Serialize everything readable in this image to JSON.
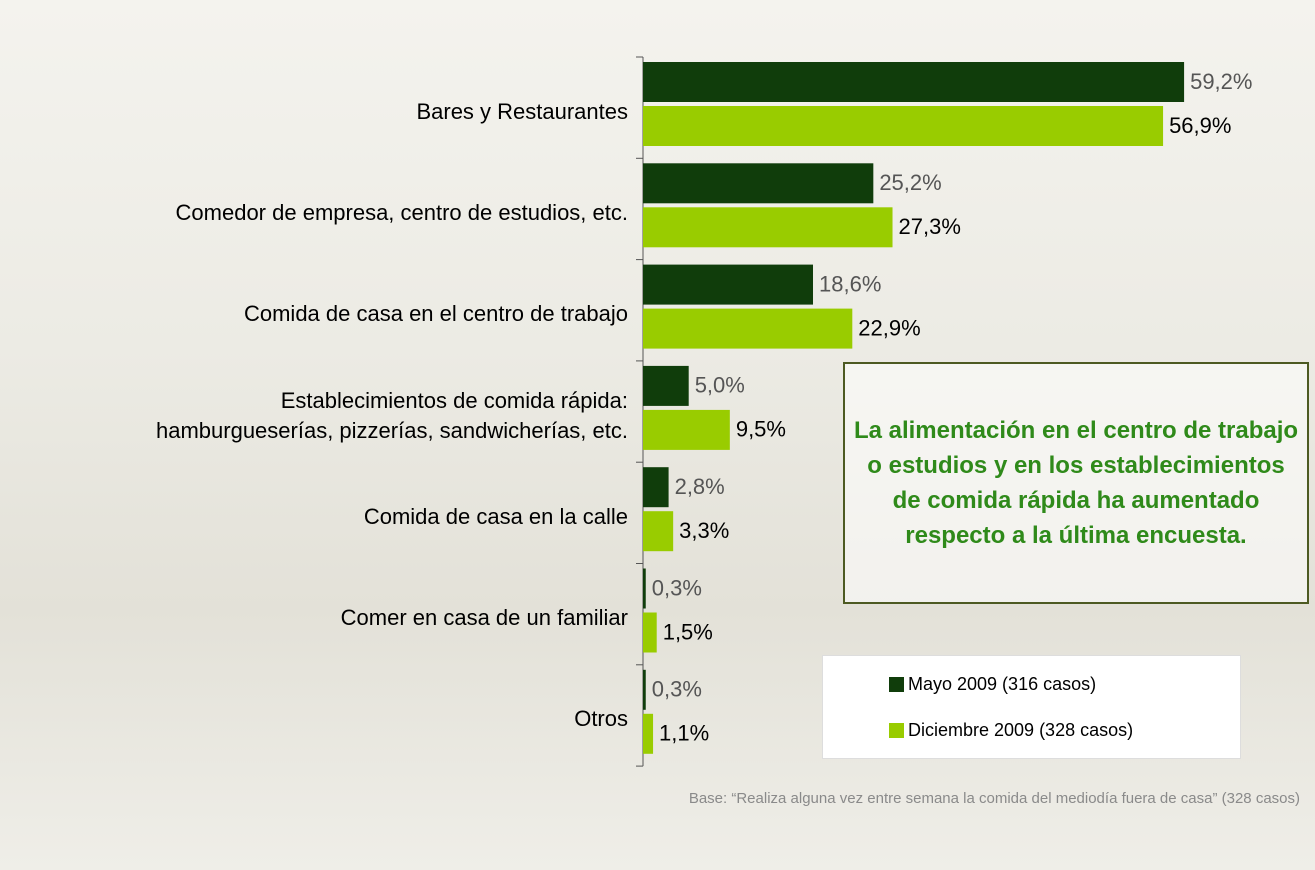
{
  "chart_data": {
    "type": "bar",
    "orientation": "horizontal",
    "categories": [
      "Bares y Restaurantes",
      "Comedor de empresa, centro de estudios, etc.",
      "Comida de casa en el centro de trabajo",
      "Establecimientos de comida rápida:\nhamburgueserías, pizzerías, sandwicherías, etc.",
      "Comida de casa en la calle",
      "Comer en casa de un familiar",
      "Otros"
    ],
    "series": [
      {
        "name": "Mayo 2009 (316 casos)",
        "color": "#103d0b",
        "values": [
          59.2,
          25.2,
          18.6,
          5.0,
          2.8,
          0.3,
          0.3
        ],
        "value_labels": [
          "59,2%",
          "25,2%",
          "18,6%",
          "5,0%",
          "2,8%",
          "0,3%",
          "0,3%"
        ]
      },
      {
        "name": "Diciembre 2009 (328 casos)",
        "color": "#99cc00",
        "values": [
          56.9,
          27.3,
          22.9,
          9.5,
          3.3,
          1.5,
          1.1
        ],
        "value_labels": [
          "56,9%",
          "27,3%",
          "22,9%",
          "9,5%",
          "3,3%",
          "1,5%",
          "1,1%"
        ]
      }
    ],
    "annotation": "La alimentación en el centro de trabajo o estudios y en los establecimientos de comida rápida ha aumentado respecto a la última encuesta.",
    "footnote": "Base: “Realiza alguna vez entre semana la comida del mediodía fuera de casa” (328 casos)"
  }
}
